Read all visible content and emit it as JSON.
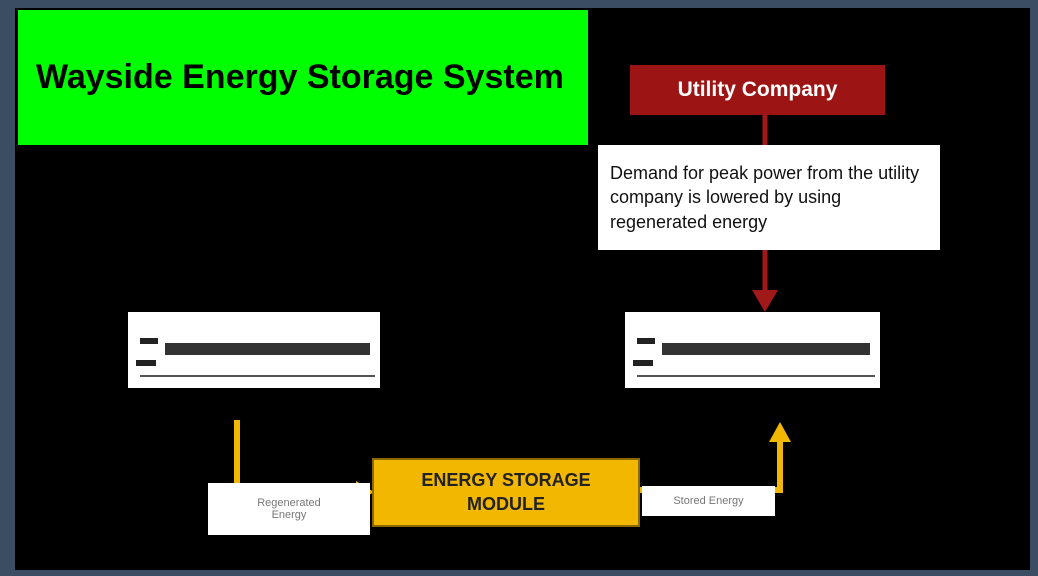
{
  "title": "Wayside Energy Storage System",
  "nodes": [
    {
      "label": "Utility Company"
    },
    {
      "label": "Demand for peak power from the utility company is lowered by using regenerated energy"
    },
    {
      "label": "ENERGY STORAGE MODULE"
    },
    {
      "label": "Regenerated Energy"
    },
    {
      "label": "Stored Energy"
    }
  ]
}
